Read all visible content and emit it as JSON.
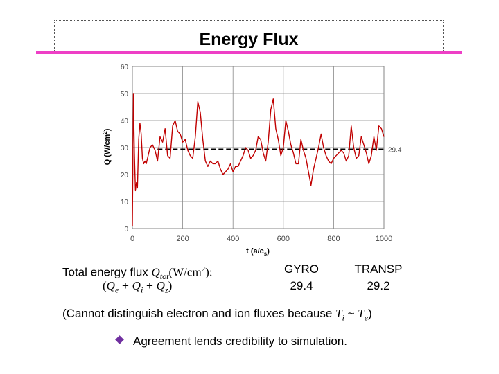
{
  "slide": {
    "title": "Energy Flux",
    "flux_label": "Total energy flux ",
    "flux_symbol": "Q",
    "flux_sub": "tot",
    "flux_units": "(W/cm",
    "flux_units_exp": "2",
    "flux_units_end": "):",
    "components": {
      "open": "(",
      "qe": "Q",
      "qe_sub": "e",
      "plus1": " + ",
      "qi": "Q",
      "qi_sub": "i",
      "plus2": " + ",
      "qz": "Q",
      "qz_sub": "z",
      "close": ")"
    },
    "gyro": {
      "label": "GYRO",
      "value": "29.4"
    },
    "transp": {
      "label": "TRANSP",
      "value": "29.2"
    },
    "note": {
      "prefix": "(Cannot distinguish electron and ion fluxes because ",
      "ti": "T",
      "ti_sub": "i",
      "tilde": " ~ ",
      "te": "T",
      "te_sub": "e",
      "suffix": ")"
    },
    "bullet_text": "Agreement lends credibility to simulation.",
    "bullet_color": "#7030a0",
    "title_rule_color": "#ee3fc6"
  },
  "chart_data": {
    "type": "line",
    "xlabel": "t (a/c",
    "xlabel_sub": "s",
    "xlabel_end": ")",
    "ylabel": "Q (W/cm",
    "ylabel_exp": "2",
    "ylabel_end": ")",
    "xlim": [
      0,
      1000
    ],
    "ylim": [
      0,
      60
    ],
    "xticks": [
      "0",
      "200",
      "400",
      "600",
      "800",
      "1000"
    ],
    "yticks": [
      "0",
      "10",
      "20",
      "30",
      "40",
      "50",
      "60"
    ],
    "grid": true,
    "line_color": "#c00000",
    "average": {
      "value": 29.4,
      "label": "29.4",
      "x_start": 100,
      "x_end": 1000
    },
    "series": [
      {
        "x": [
          0,
          4,
          8,
          12,
          16,
          20,
          25,
          30,
          35,
          40,
          45,
          50,
          55,
          60,
          70,
          80,
          90,
          100,
          110,
          120,
          130,
          140,
          150,
          160,
          170,
          180,
          190,
          200,
          210,
          220,
          230,
          240,
          250,
          260,
          270,
          280,
          290,
          300,
          310,
          320,
          330,
          340,
          350,
          360,
          370,
          380,
          390,
          400,
          410,
          420,
          430,
          440,
          450,
          460,
          470,
          480,
          490,
          500,
          510,
          520,
          530,
          540,
          550,
          560,
          570,
          580,
          590,
          600,
          610,
          620,
          630,
          640,
          650,
          660,
          670,
          680,
          690,
          700,
          710,
          720,
          730,
          740,
          750,
          760,
          770,
          780,
          790,
          800,
          810,
          820,
          830,
          840,
          850,
          860,
          870,
          880,
          890,
          900,
          910,
          920,
          930,
          940,
          950,
          960,
          970,
          980,
          990,
          1000
        ],
        "values": [
          1,
          50,
          28,
          14,
          17,
          15,
          33,
          39,
          35,
          26,
          24,
          25,
          24,
          26,
          30,
          31,
          29,
          25,
          34,
          32,
          37,
          27,
          26,
          38,
          40,
          36,
          35,
          32,
          33,
          29,
          27,
          26,
          34,
          47,
          43,
          33,
          25,
          23,
          25,
          24,
          24,
          25,
          22,
          20,
          21,
          22,
          24,
          21,
          23,
          23,
          25,
          27,
          30,
          29,
          26,
          27,
          29,
          34,
          33,
          28,
          25,
          32,
          44,
          48,
          37,
          33,
          27,
          30,
          40,
          36,
          31,
          28,
          24,
          24,
          33,
          29,
          26,
          21,
          16,
          22,
          26,
          30,
          35,
          30,
          27,
          25,
          24,
          26,
          27,
          28,
          29,
          28,
          25,
          27,
          38,
          30,
          26,
          27,
          34,
          31,
          28,
          24,
          27,
          34,
          29,
          38,
          37,
          34
        ]
      }
    ]
  }
}
